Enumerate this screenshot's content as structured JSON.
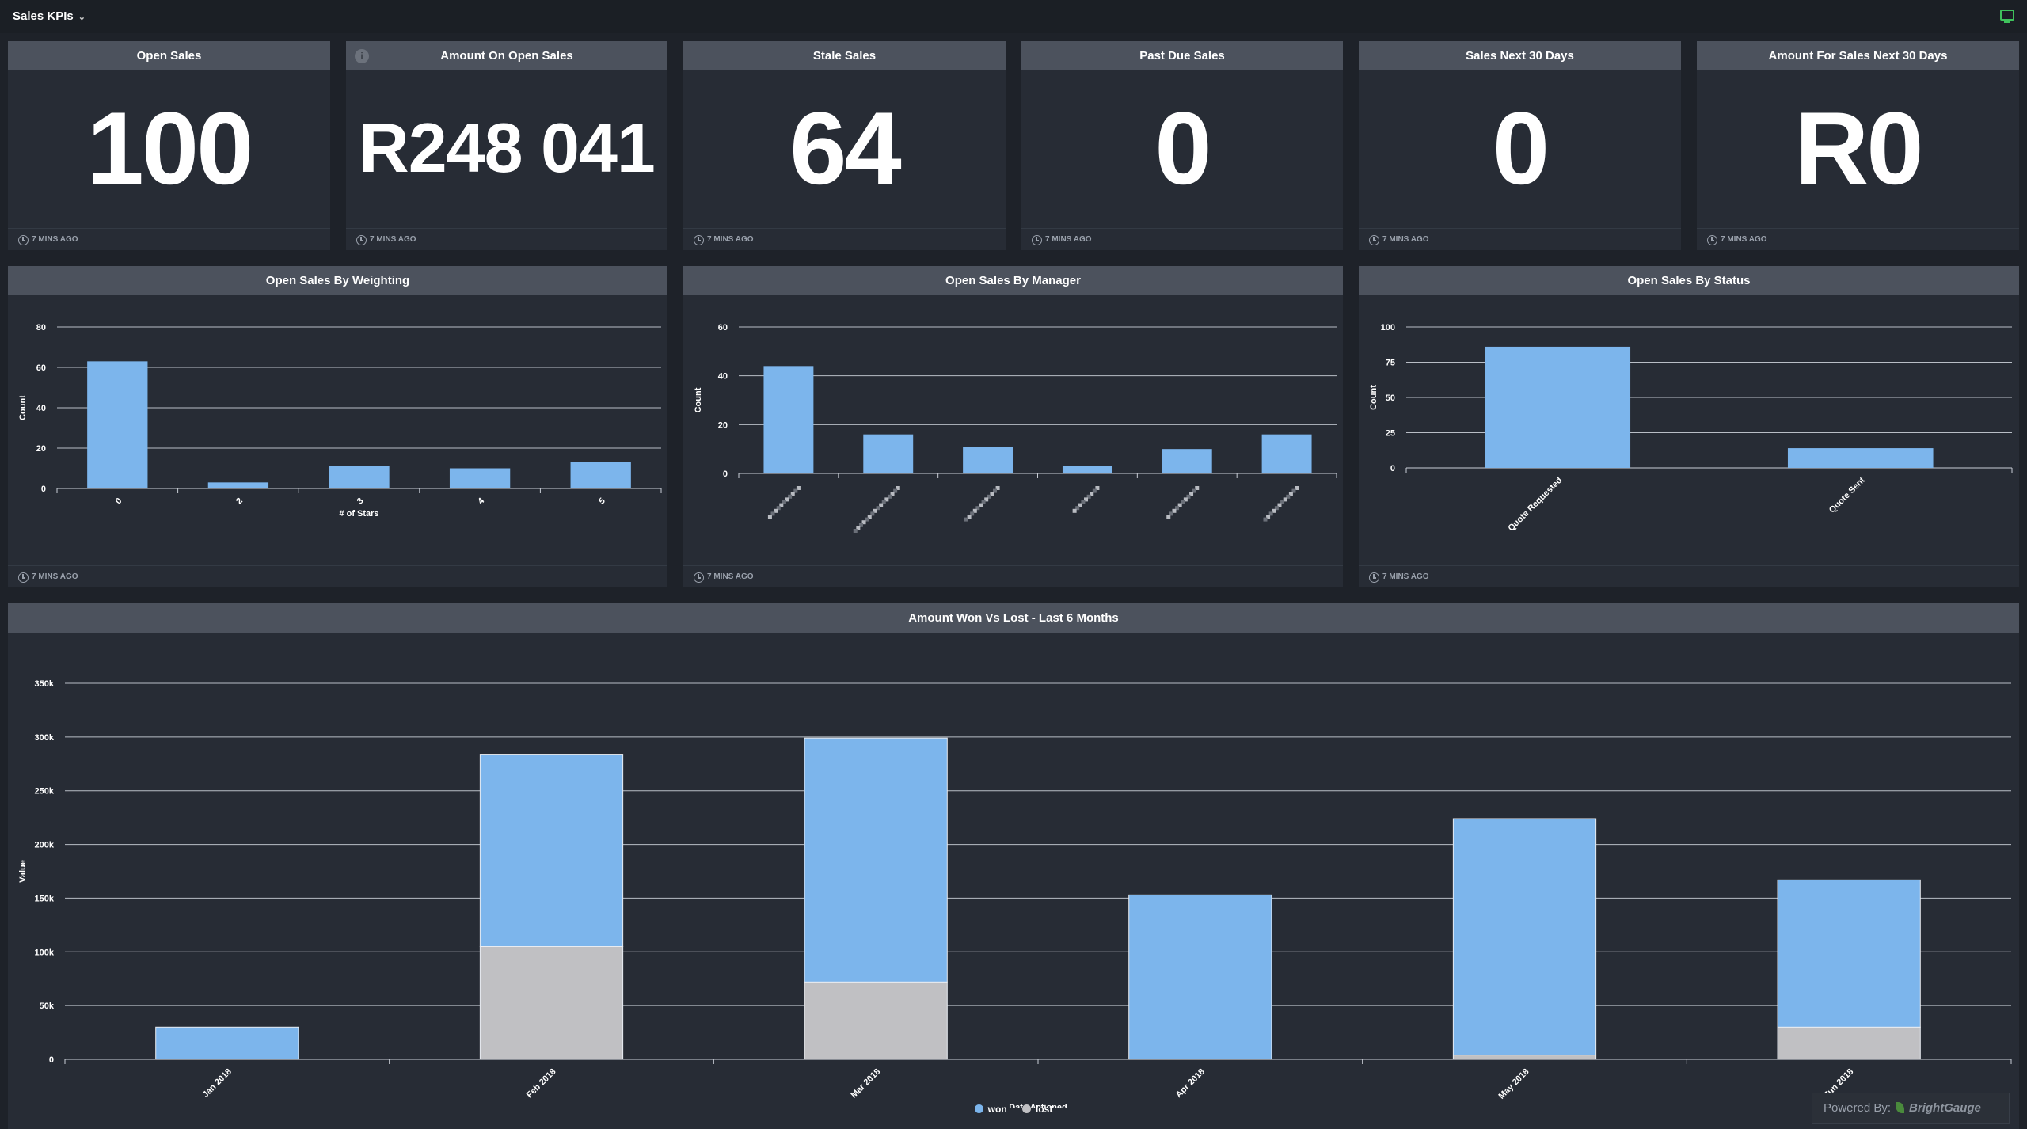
{
  "header": {
    "title": "Sales KPIs"
  },
  "colors": {
    "won": "#7cb5ec",
    "lost": "#c0c0c3",
    "panel_header": "#4c525d",
    "panel": "#272c35",
    "background": "#1e2229"
  },
  "kpis": [
    {
      "title": "Open Sales",
      "value": "100",
      "updated": "7 MINS AGO"
    },
    {
      "title": "Amount On Open Sales",
      "value": "R248 041",
      "updated": "7 MINS AGO"
    },
    {
      "title": "Stale Sales",
      "value": "64",
      "updated": "7 MINS AGO"
    },
    {
      "title": "Past Due Sales",
      "value": "0",
      "updated": "7 MINS AGO"
    },
    {
      "title": "Sales Next 30 Days",
      "value": "0",
      "updated": "7 MINS AGO"
    },
    {
      "title": "Amount For Sales Next 30 Days",
      "value": "R0",
      "updated": "7 MINS AGO"
    }
  ],
  "weighting": {
    "title": "Open Sales By Weighting",
    "updated": "7 MINS AGO"
  },
  "manager": {
    "title": "Open Sales By Manager",
    "updated": "7 MINS AGO"
  },
  "status": {
    "title": "Open Sales By Status",
    "updated": "7 MINS AGO"
  },
  "wonlost": {
    "title": "Amount Won Vs Lost - Last 6 Months",
    "legend": {
      "won": "won",
      "lost": "lost"
    }
  },
  "powered_by": {
    "label": "Powered By:",
    "brand": "BrightGauge"
  },
  "chart_data": [
    {
      "type": "bar",
      "title": "Open Sales By Weighting",
      "xlabel": "# of Stars",
      "ylabel": "Count",
      "categories": [
        "0",
        "2",
        "3",
        "4",
        "5"
      ],
      "values": [
        63,
        3,
        11,
        10,
        13
      ],
      "ylim": [
        0,
        80
      ],
      "yticks": [
        0,
        20,
        40,
        60,
        80
      ]
    },
    {
      "type": "bar",
      "title": "Open Sales By Manager",
      "xlabel": "",
      "ylabel": "Count",
      "categories": [
        "",
        "",
        "",
        "",
        "",
        ""
      ],
      "values": [
        44,
        16,
        11,
        3,
        10,
        16
      ],
      "ylim": [
        0,
        60
      ],
      "yticks": [
        0,
        20,
        40,
        60
      ]
    },
    {
      "type": "bar",
      "title": "Open Sales By Status",
      "xlabel": "",
      "ylabel": "Count",
      "categories": [
        "Quote Requested",
        "Quote Sent"
      ],
      "values": [
        86,
        14
      ],
      "ylim": [
        0,
        100
      ],
      "yticks": [
        0,
        25,
        50,
        75,
        100
      ]
    },
    {
      "type": "bar",
      "stacked": true,
      "title": "Amount Won Vs Lost - Last 6 Months",
      "xlabel": "Date Actioned",
      "ylabel": "Value",
      "categories": [
        "Jan 2018",
        "Feb 2018",
        "Mar 2018",
        "Apr 2018",
        "May 2018",
        "Jun 2018"
      ],
      "series": [
        {
          "name": "won",
          "values": [
            30000,
            179000,
            227000,
            153000,
            220000,
            137000
          ]
        },
        {
          "name": "lost",
          "values": [
            0,
            105000,
            72000,
            0,
            4000,
            30000
          ]
        }
      ],
      "ylim": [
        0,
        350000
      ],
      "yticks": [
        "0",
        "50k",
        "100k",
        "150k",
        "200k",
        "250k",
        "300k",
        "350k"
      ],
      "legend": "bottom-center"
    }
  ]
}
